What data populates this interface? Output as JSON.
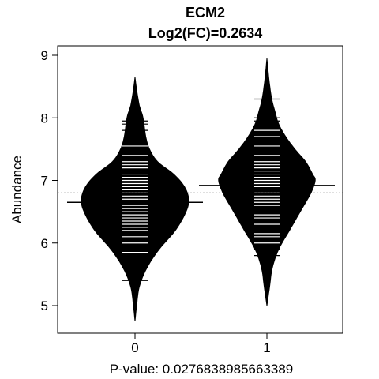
{
  "chart_data": {
    "type": "beanplot",
    "title": "ECM2",
    "subtitle": "Log2(FC)=0.2634",
    "xlabel": "P-value: 0.0276838985663389",
    "ylabel": "Abundance",
    "categories": [
      "0",
      "1"
    ],
    "yticks": [
      "5",
      "6",
      "7",
      "8",
      "9"
    ],
    "ylim": [
      4.7,
      9.15
    ],
    "overall_mean": 6.8,
    "groups": [
      {
        "category": "0",
        "mean": 6.65,
        "min": 4.75,
        "max": 8.65,
        "density": [
          [
            4.75,
            0.0
          ],
          [
            5.0,
            0.03
          ],
          [
            5.3,
            0.08
          ],
          [
            5.6,
            0.22
          ],
          [
            5.9,
            0.45
          ],
          [
            6.2,
            0.75
          ],
          [
            6.5,
            0.95
          ],
          [
            6.7,
            1.0
          ],
          [
            6.9,
            0.92
          ],
          [
            7.1,
            0.72
          ],
          [
            7.3,
            0.42
          ],
          [
            7.5,
            0.27
          ],
          [
            7.7,
            0.2
          ],
          [
            8.0,
            0.15
          ],
          [
            8.2,
            0.08
          ],
          [
            8.45,
            0.03
          ],
          [
            8.65,
            0.0
          ]
        ],
        "observations": [
          5.4,
          5.85,
          6.0,
          6.1,
          6.2,
          6.25,
          6.3,
          6.35,
          6.4,
          6.45,
          6.5,
          6.55,
          6.6,
          6.65,
          6.7,
          6.75,
          6.8,
          6.85,
          6.9,
          6.95,
          7.0,
          7.05,
          7.1,
          7.2,
          7.25,
          7.3,
          7.4,
          7.55,
          7.8,
          7.9,
          7.95
        ]
      },
      {
        "category": "1",
        "mean": 6.92,
        "min": 5.0,
        "max": 8.95,
        "density": [
          [
            5.0,
            0.0
          ],
          [
            5.3,
            0.05
          ],
          [
            5.6,
            0.1
          ],
          [
            5.9,
            0.22
          ],
          [
            6.2,
            0.42
          ],
          [
            6.5,
            0.62
          ],
          [
            6.8,
            0.82
          ],
          [
            7.0,
            0.9
          ],
          [
            7.1,
            0.85
          ],
          [
            7.3,
            0.72
          ],
          [
            7.5,
            0.52
          ],
          [
            7.7,
            0.35
          ],
          [
            7.9,
            0.22
          ],
          [
            8.1,
            0.15
          ],
          [
            8.3,
            0.09
          ],
          [
            8.6,
            0.04
          ],
          [
            8.95,
            0.0
          ]
        ],
        "observations": [
          5.8,
          5.9,
          6.0,
          6.1,
          6.15,
          6.3,
          6.4,
          6.45,
          6.6,
          6.65,
          6.7,
          6.75,
          6.8,
          6.9,
          6.95,
          7.0,
          7.05,
          7.1,
          7.15,
          7.2,
          7.25,
          7.3,
          7.4,
          7.55,
          7.7,
          7.8,
          7.95,
          8.0,
          8.3
        ]
      }
    ]
  }
}
